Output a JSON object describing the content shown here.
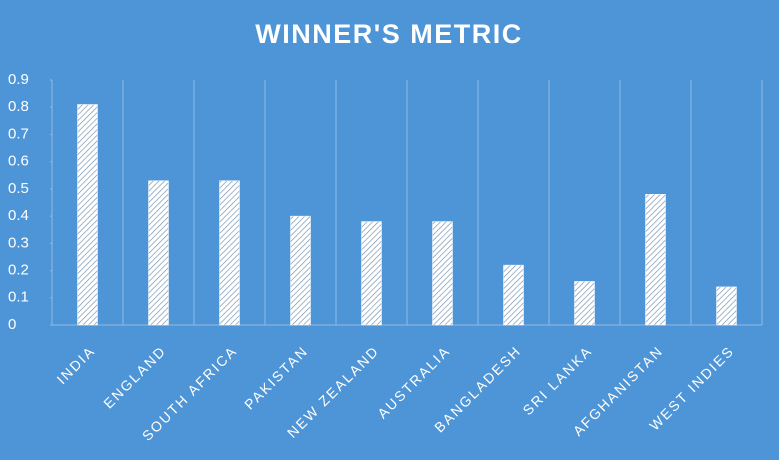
{
  "chart_data": {
    "type": "bar",
    "title": "WINNER'S METRIC",
    "categories": [
      "INDIA",
      "ENGLAND",
      "SOUTH AFRICA",
      "PAKISTAN",
      "NEW ZEALAND",
      "AUSTRALIA",
      "BANGLADESH",
      "SRI LANKA",
      "AFGHANISTAN",
      "WEST INDIES"
    ],
    "values": [
      0.81,
      0.53,
      0.53,
      0.4,
      0.38,
      0.38,
      0.22,
      0.16,
      0.48,
      0.14
    ],
    "color": "#ffffff",
    "ylim": [
      0,
      0.9
    ],
    "yticks": [
      0,
      0.1,
      0.2,
      0.3,
      0.4,
      0.5,
      0.6,
      0.7,
      0.8,
      0.9
    ],
    "grid": true
  }
}
